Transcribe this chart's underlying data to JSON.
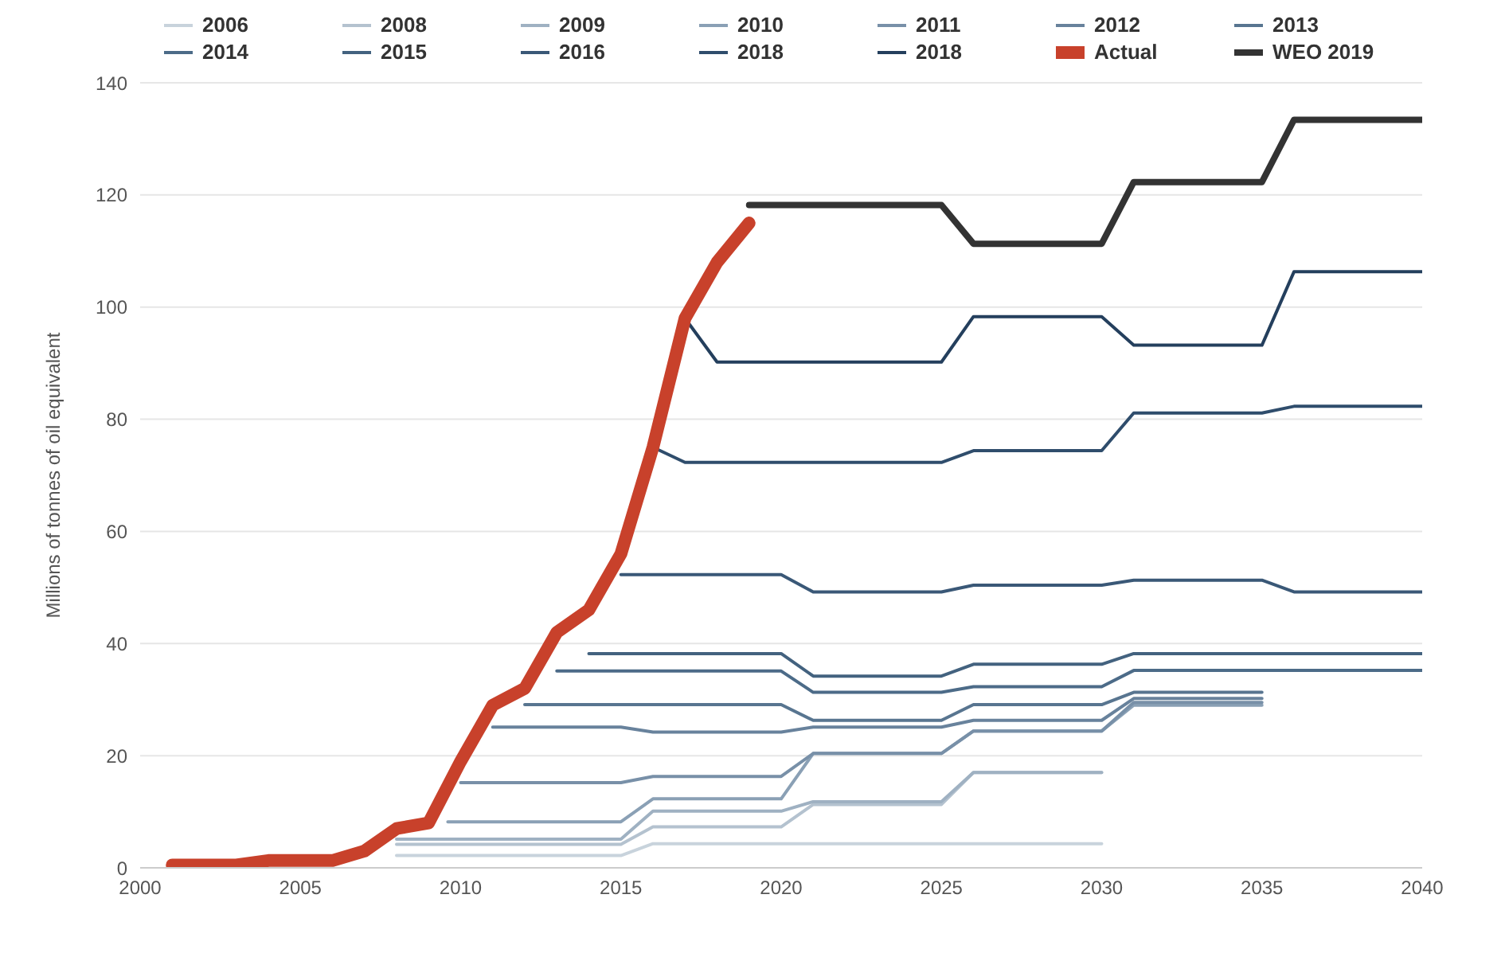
{
  "chart_data": {
    "type": "line",
    "ylabel": "Millions of tonnes of oil equivalent",
    "xlim": [
      2000,
      2040
    ],
    "xticks": [
      2000,
      2005,
      2010,
      2015,
      2020,
      2025,
      2030,
      2035,
      2040
    ],
    "ylim": [
      0,
      140
    ],
    "yticks": [
      0,
      20,
      40,
      60,
      80,
      100,
      120,
      140
    ],
    "grid": "y",
    "legend": "top",
    "marker": "none",
    "series": [
      {
        "name": "2006",
        "color": "#c8d3dc",
        "x": [
          2008,
          2015,
          2016,
          2030
        ],
        "values": [
          2.2,
          2.2,
          4.3,
          4.3
        ]
      },
      {
        "name": "2008",
        "color": "#b4c2cf",
        "x": [
          2008,
          2015,
          2016,
          2020,
          2021,
          2025,
          2026,
          2030
        ],
        "values": [
          4.2,
          4.2,
          7.3,
          7.3,
          11.3,
          11.3,
          17,
          17
        ]
      },
      {
        "name": "2009",
        "color": "#9fb1c2",
        "x": [
          2008,
          2015,
          2016,
          2020,
          2021,
          2025,
          2026,
          2030
        ],
        "values": [
          5.1,
          5.1,
          10.1,
          10.1,
          11.8,
          11.8,
          17,
          17
        ]
      },
      {
        "name": "2010",
        "color": "#8aa0b5",
        "x": [
          2009.6,
          2015,
          2016,
          2020,
          2021,
          2025,
          2026,
          2030,
          2031,
          2035
        ],
        "values": [
          8.2,
          8.2,
          12.3,
          12.3,
          20.4,
          20.4,
          24.4,
          24.4,
          29,
          29
        ]
      },
      {
        "name": "2011",
        "color": "#7890a8",
        "x": [
          2010,
          2015,
          2016,
          2020,
          2021,
          2025,
          2026,
          2030,
          2031,
          2035
        ],
        "values": [
          15.2,
          15.2,
          16.3,
          16.3,
          20.4,
          20.4,
          24.4,
          24.4,
          29.5,
          29.5
        ]
      },
      {
        "name": "2012",
        "color": "#68829c",
        "x": [
          2011,
          2015,
          2016,
          2020,
          2021,
          2025,
          2026,
          2030,
          2031,
          2035
        ],
        "values": [
          25.1,
          25.1,
          24.2,
          24.2,
          25.1,
          25.1,
          26.3,
          26.3,
          30.2,
          30.2
        ]
      },
      {
        "name": "2013",
        "color": "#587590",
        "x": [
          2012,
          2020,
          2021,
          2025,
          2026,
          2030,
          2031,
          2035
        ],
        "values": [
          29.1,
          29.1,
          26.3,
          26.3,
          29.1,
          29.1,
          31.3,
          31.3
        ]
      },
      {
        "name": "2014",
        "color": "#4c6b88",
        "x": [
          2013,
          2020,
          2021,
          2025,
          2026,
          2030,
          2031,
          2040
        ],
        "values": [
          35.1,
          35.1,
          31.3,
          31.3,
          32.3,
          32.3,
          35.2,
          35.2
        ]
      },
      {
        "name": "2015",
        "color": "#43627f",
        "x": [
          2014,
          2020,
          2021,
          2025,
          2026,
          2030,
          2031,
          2040
        ],
        "values": [
          38.2,
          38.2,
          34.2,
          34.2,
          36.3,
          36.3,
          38.2,
          38.2
        ]
      },
      {
        "name": "2016",
        "color": "#3a5877",
        "x": [
          2015,
          2020,
          2021,
          2025,
          2026,
          2030,
          2031,
          2035,
          2036,
          2040
        ],
        "values": [
          52.3,
          52.3,
          49.2,
          49.2,
          50.4,
          50.4,
          51.3,
          51.3,
          49.2,
          49.2
        ]
      },
      {
        "name": "2018",
        "color": "#2f4d6c",
        "x": [
          2016,
          2017,
          2025,
          2026,
          2030,
          2031,
          2035,
          2036,
          2040
        ],
        "values": [
          75,
          72.3,
          72.3,
          74.4,
          74.4,
          81.1,
          81.1,
          82.3,
          82.3
        ]
      },
      {
        "name": "2018",
        "color": "#243f5d",
        "x": [
          2017,
          2018,
          2025,
          2026,
          2030,
          2031,
          2035,
          2036,
          2040
        ],
        "values": [
          98,
          90.2,
          90.2,
          98.3,
          98.3,
          93.2,
          93.2,
          106.3,
          106.3
        ]
      },
      {
        "name": "Actual",
        "color": "#c8412b",
        "x": [
          2001,
          2002,
          2003,
          2004,
          2005,
          2006,
          2007,
          2008,
          2009,
          2010,
          2011,
          2012,
          2013,
          2014,
          2015,
          2016,
          2017,
          2018,
          2019
        ],
        "values": [
          0.5,
          0.5,
          0.5,
          1.3,
          1.3,
          1.3,
          3,
          7,
          8,
          19,
          29,
          32,
          42,
          46,
          56,
          75,
          98,
          108,
          115
        ]
      },
      {
        "name": "WEO 2019",
        "color": "#333333",
        "x": [
          2019,
          2025,
          2026,
          2030,
          2031,
          2035,
          2036,
          2040
        ],
        "values": [
          118.2,
          118.2,
          111.3,
          111.3,
          122.3,
          122.3,
          133.4,
          133.4
        ]
      }
    ]
  }
}
